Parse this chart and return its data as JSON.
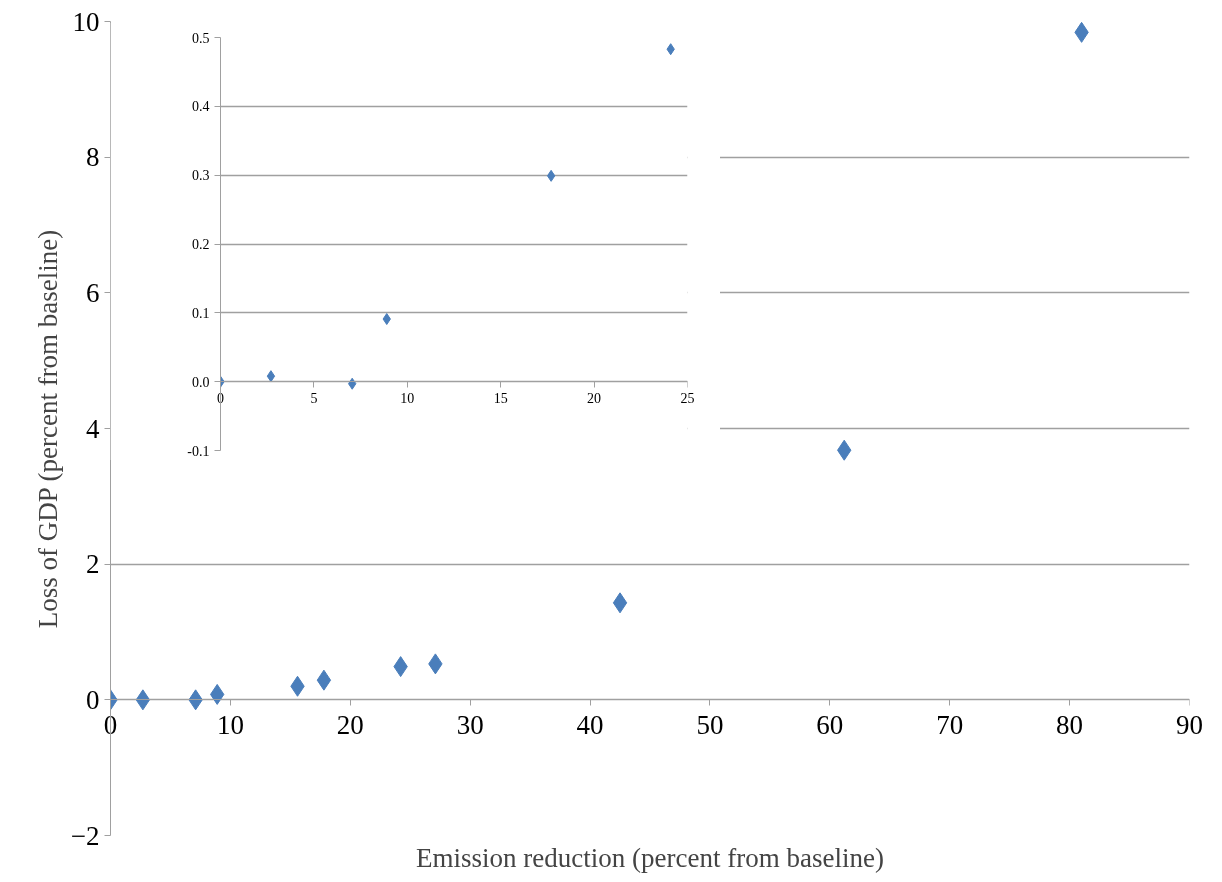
{
  "chart_data": [
    {
      "type": "scatter",
      "xlabel": "Emission reduction (percent from baseline)",
      "ylabel": "Loss of GDP (percent from baseline)",
      "x": [
        0,
        2.7,
        7.1,
        8.9,
        15.6,
        17.8,
        24.2,
        27.1,
        42.5,
        61.2,
        81.0
      ],
      "series": [
        {
          "color": "#4a7ebb",
          "values": [
            0,
            0,
            0,
            0.08,
            0.2,
            0.29,
            0.49,
            0.53,
            1.43,
            3.68,
            9.84
          ]
        }
      ],
      "xlim": [
        0,
        90
      ],
      "xticks": [
        0,
        10,
        20,
        30,
        40,
        50,
        60,
        70,
        80,
        90
      ],
      "ylim": [
        -2,
        10
      ],
      "yticks": [
        -2,
        0,
        2,
        4,
        6,
        8,
        10
      ],
      "grid": "y",
      "marker": "diamond"
    },
    {
      "type": "scatter",
      "x": [
        0,
        2.7,
        7.05,
        8.9,
        17.7,
        24.1
      ],
      "series": [
        {
          "color": "#4a7ebb",
          "values": [
            0,
            0.008,
            -0.003,
            0.091,
            0.299,
            0.483
          ]
        }
      ],
      "xlim": [
        0,
        25
      ],
      "xticks": [
        0,
        5,
        10,
        15,
        20,
        25
      ],
      "ylim": [
        -0.1,
        0.5
      ],
      "yticks": [
        {
          "value": -0.1,
          "label": "-0.1"
        },
        {
          "value": 0,
          "label": "0.0"
        },
        {
          "value": 0.1,
          "label": "0.1"
        },
        {
          "value": 0.2,
          "label": "0.2"
        },
        {
          "value": 0.3,
          "label": "0.3"
        },
        {
          "value": 0.4,
          "label": "0.4"
        },
        {
          "value": 0.5,
          "label": "0.5"
        }
      ],
      "grid": "y",
      "marker": "diamond"
    }
  ]
}
